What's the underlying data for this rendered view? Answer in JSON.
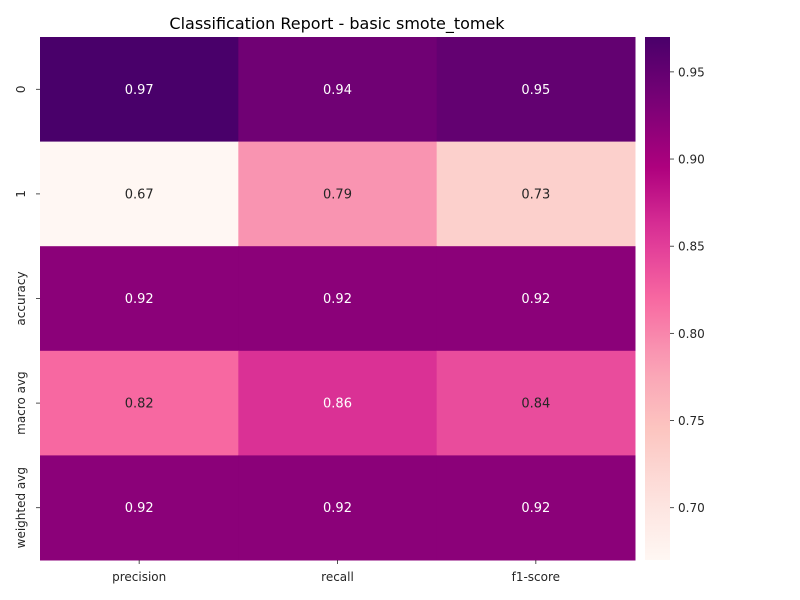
{
  "chart_data": {
    "type": "heatmap",
    "title": "Classification Report - basic smote_tomek",
    "xlabel": "",
    "ylabel": "",
    "columns": [
      "precision",
      "recall",
      "f1-score"
    ],
    "rows": [
      "0",
      "1",
      "accuracy",
      "macro avg",
      "weighted avg"
    ],
    "values": [
      [
        0.97,
        0.94,
        0.95
      ],
      [
        0.67,
        0.79,
        0.73
      ],
      [
        0.92,
        0.92,
        0.92
      ],
      [
        0.82,
        0.86,
        0.84
      ],
      [
        0.92,
        0.92,
        0.92
      ]
    ],
    "value_labels": [
      [
        "0.97",
        "0.94",
        "0.95"
      ],
      [
        "0.67",
        "0.79",
        "0.73"
      ],
      [
        "0.92",
        "0.92",
        "0.92"
      ],
      [
        "0.82",
        "0.86",
        "0.84"
      ],
      [
        "0.92",
        "0.92",
        "0.92"
      ]
    ],
    "colormap": "RdPu",
    "vmin": 0.67,
    "vmax": 0.97,
    "colorbar_ticks": [
      "0.70",
      "0.75",
      "0.80",
      "0.85",
      "0.90",
      "0.95"
    ],
    "grid": false,
    "legend": "colorbar-right"
  }
}
